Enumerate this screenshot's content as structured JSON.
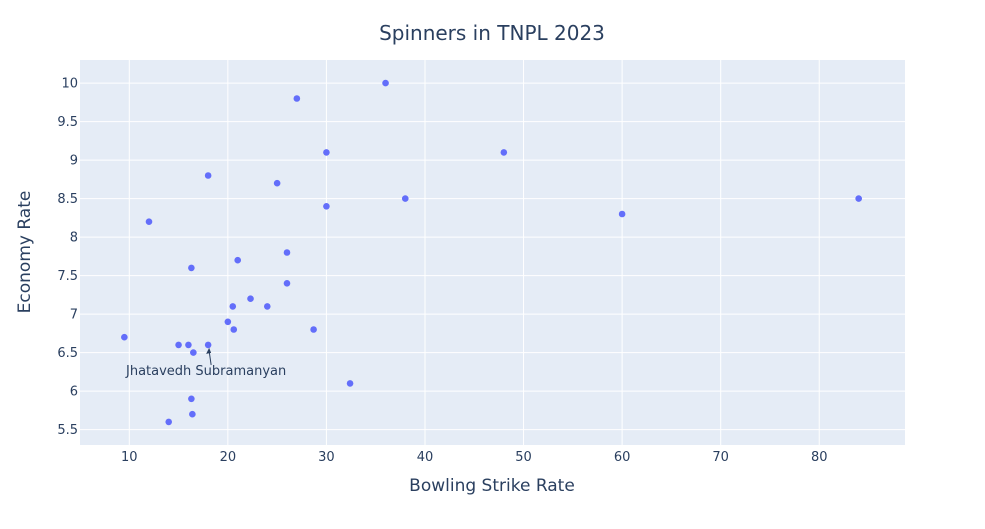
{
  "chart_data": {
    "type": "scatter",
    "title": "Spinners in TNPL 2023",
    "xlabel": "Bowling Strike Rate",
    "ylabel": "Economy Rate",
    "xlim": [
      5,
      88.7
    ],
    "ylim": [
      5.3,
      10.3
    ],
    "x_ticks": [
      10,
      20,
      30,
      40,
      50,
      60,
      70,
      80
    ],
    "y_ticks": [
      5.5,
      6,
      6.5,
      7,
      7.5,
      8,
      8.5,
      9,
      9.5,
      10
    ],
    "grid": true,
    "plot_background": "#e5ecf6",
    "marker_color": "#636efa",
    "series": [
      {
        "x": [
          36,
          27,
          30,
          48,
          18,
          25,
          38,
          30,
          60,
          84,
          12,
          26,
          21,
          16.3,
          26,
          22.3,
          20.5,
          24,
          20,
          20.6,
          28.7,
          9.5,
          15,
          16,
          18,
          16.5,
          32.4,
          16.3,
          16.4,
          14
        ],
        "y": [
          10,
          9.8,
          9.1,
          9.1,
          8.8,
          8.7,
          8.5,
          8.4,
          8.3,
          8.5,
          8.2,
          7.8,
          7.7,
          7.6,
          7.4,
          7.2,
          7.1,
          7.1,
          6.9,
          6.8,
          6.8,
          6.7,
          6.6,
          6.6,
          6.6,
          6.5,
          6.1,
          5.9,
          5.7,
          5.6
        ]
      }
    ],
    "annotations": [
      {
        "text": "Jhatavedh Subramanyan",
        "x": 18,
        "y": 6.6
      }
    ]
  }
}
